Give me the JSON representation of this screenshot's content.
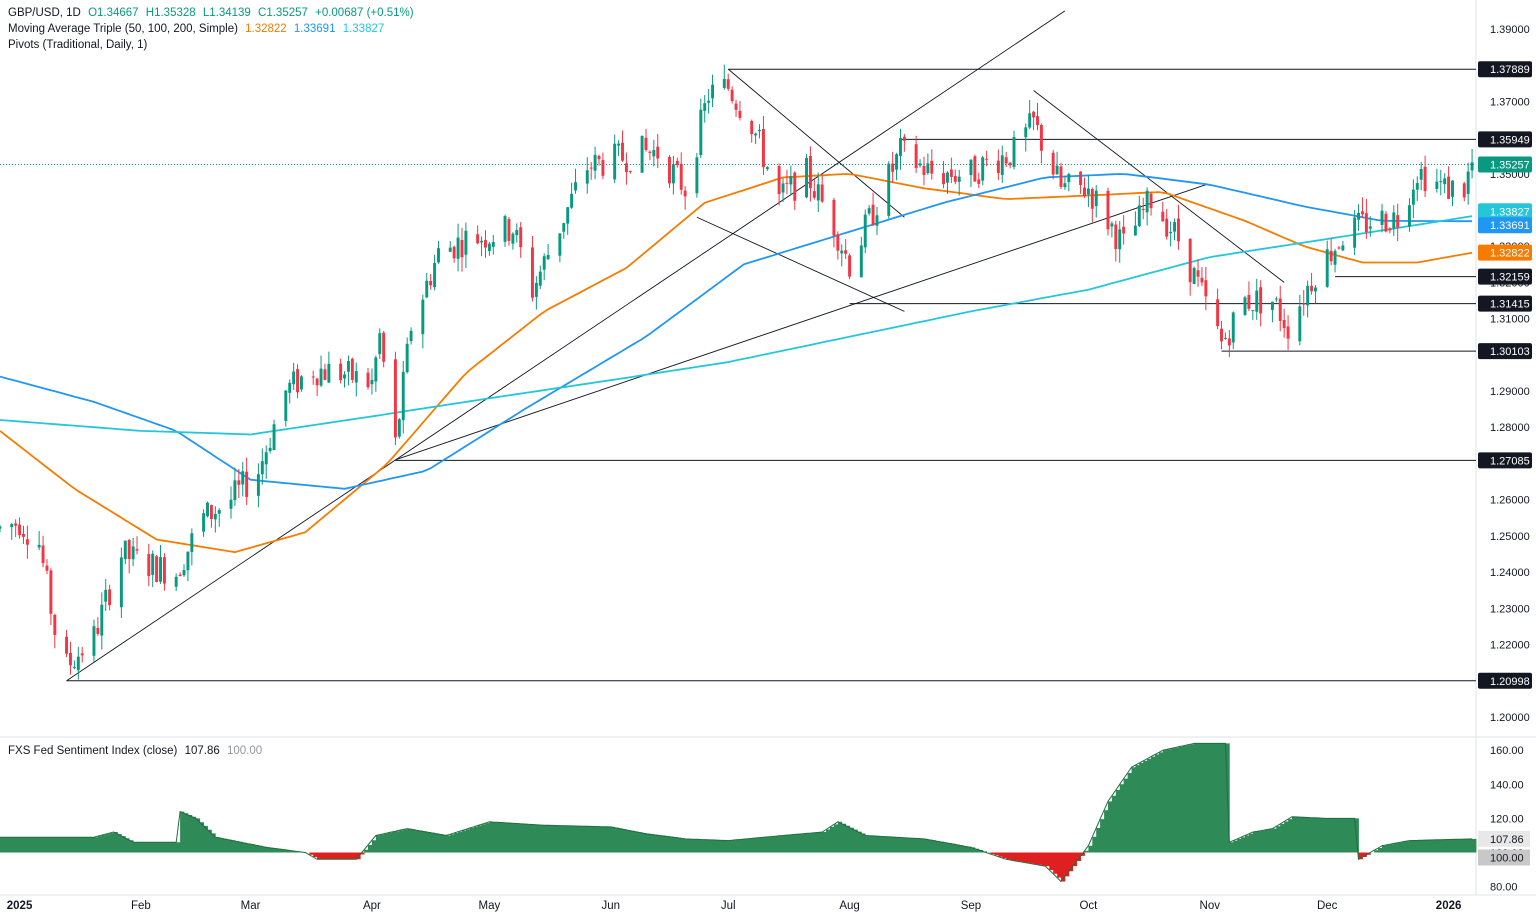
{
  "legend": {
    "symbol": "GBP/USD, 1D",
    "open": "O1.34667",
    "high": "H1.35328",
    "low": "L1.34139",
    "close": "C1.35257",
    "change": "+0.00687 (+0.51%)",
    "ma_title": "Moving Average Triple (50, 100, 200, Simple)",
    "ma_values": [
      "1.32822",
      "1.33691",
      "1.33827"
    ],
    "pivots_title": "Pivots (Traditional, Daily, 1)",
    "osc_title": "FXS Fed Sentiment Index (close)",
    "osc_value": "107.86",
    "osc_base": "100.00"
  },
  "colors": {
    "up": "#089981",
    "down": "#f23645",
    "ma50": "#f57c00",
    "ma100": "#2196f3",
    "ma200": "#26c6da",
    "osc_pos": "#2e8b57",
    "osc_neg": "#e02020"
  },
  "chart_data": {
    "type": "candlestick",
    "price_axis": {
      "ticks": [
        "1.39000",
        "1.37000",
        "1.35000",
        "1.34000",
        "1.33000",
        "1.32000",
        "1.31000",
        "1.29000",
        "1.28000",
        "1.26000",
        "1.25000",
        "1.24000",
        "1.23000",
        "1.22000",
        "1.20000"
      ],
      "ylim": [
        1.195,
        1.398
      ]
    },
    "time_axis": {
      "labels": [
        "2025",
        "Feb",
        "Mar",
        "Apr",
        "May",
        "Jun",
        "Jul",
        "Aug",
        "Sep",
        "Oct",
        "Nov",
        "Dec",
        "2026"
      ],
      "dates": [
        "2025-01-01",
        "2025-02-01",
        "2025-03-01",
        "2025-04-01",
        "2025-05-01",
        "2025-06-01",
        "2025-07-01",
        "2025-08-01",
        "2025-09-01",
        "2025-10-01",
        "2025-11-01",
        "2025-12-01",
        "2026-01-01"
      ],
      "range": [
        "2024-12-27",
        "2026-01-08"
      ]
    },
    "level_labels": [
      {
        "value": 1.37889,
        "label": "1.37889",
        "start": "2025-07-01"
      },
      {
        "value": 1.35949,
        "label": "1.35949",
        "start": "2025-08-14"
      },
      {
        "value": 1.35257,
        "label": "1.35257",
        "kind": "last"
      },
      {
        "value": 1.33827,
        "label": "1.33827",
        "kind": "ma200"
      },
      {
        "value": 1.33691,
        "label": "1.33691",
        "kind": "ma100"
      },
      {
        "value": 1.32822,
        "label": "1.32822",
        "kind": "ma50"
      },
      {
        "value": 1.32159,
        "label": "1.32159",
        "start": "2025-12-03"
      },
      {
        "value": 1.31415,
        "label": "1.31415",
        "start": "2025-08-01"
      },
      {
        "value": 1.30103,
        "label": "1.30103",
        "start": "2025-11-04"
      },
      {
        "value": 1.27085,
        "label": "1.27085",
        "start": "2025-04-07"
      },
      {
        "value": 1.20998,
        "label": "1.20998",
        "start": "2025-01-13"
      }
    ],
    "trendlines": [
      {
        "from": [
          "2025-01-13",
          1.21
        ],
        "to": [
          "2025-09-25",
          1.395
        ]
      },
      {
        "from": [
          "2025-04-07",
          1.271
        ],
        "to": [
          "2025-10-31",
          1.347
        ]
      },
      {
        "from": [
          "2025-07-01",
          1.3789
        ],
        "to": [
          "2025-08-15",
          1.338
        ]
      },
      {
        "from": [
          "2025-06-23",
          1.338
        ],
        "to": [
          "2025-08-15",
          1.312
        ]
      },
      {
        "from": [
          "2025-09-17",
          1.373
        ],
        "to": [
          "2025-11-20",
          1.32
        ]
      }
    ],
    "price_keypoints": [
      [
        "2024-12-27",
        1.252
      ],
      [
        "2025-01-01",
        1.254
      ],
      [
        "2025-01-06",
        1.248
      ],
      [
        "2025-01-10",
        1.224
      ],
      [
        "2025-01-13",
        1.214
      ],
      [
        "2025-01-20",
        1.222
      ],
      [
        "2025-01-27",
        1.245
      ],
      [
        "2025-02-03",
        1.242
      ],
      [
        "2025-02-10",
        1.24
      ],
      [
        "2025-02-17",
        1.255
      ],
      [
        "2025-02-24",
        1.26
      ],
      [
        "2025-03-03",
        1.268
      ],
      [
        "2025-03-10",
        1.29
      ],
      [
        "2025-03-17",
        1.296
      ],
      [
        "2025-03-24",
        1.295
      ],
      [
        "2025-04-01",
        1.292
      ],
      [
        "2025-04-03",
        1.305
      ],
      [
        "2025-04-07",
        1.275
      ],
      [
        "2025-04-11",
        1.308
      ],
      [
        "2025-04-18",
        1.328
      ],
      [
        "2025-04-25",
        1.332
      ],
      [
        "2025-05-01",
        1.333
      ],
      [
        "2025-05-07",
        1.335
      ],
      [
        "2025-05-12",
        1.318
      ],
      [
        "2025-05-20",
        1.338
      ],
      [
        "2025-05-26",
        1.352
      ],
      [
        "2025-06-02",
        1.354
      ],
      [
        "2025-06-09",
        1.356
      ],
      [
        "2025-06-13",
        1.356
      ],
      [
        "2025-06-20",
        1.346
      ],
      [
        "2025-06-26",
        1.372
      ],
      [
        "2025-07-01",
        1.374
      ],
      [
        "2025-07-07",
        1.364
      ],
      [
        "2025-07-14",
        1.343
      ],
      [
        "2025-07-21",
        1.35
      ],
      [
        "2025-07-28",
        1.336
      ],
      [
        "2025-08-01",
        1.325
      ],
      [
        "2025-08-08",
        1.342
      ],
      [
        "2025-08-14",
        1.356
      ],
      [
        "2025-08-22",
        1.35
      ],
      [
        "2025-09-01",
        1.35
      ],
      [
        "2025-09-05",
        1.353
      ],
      [
        "2025-09-12",
        1.356
      ],
      [
        "2025-09-17",
        1.364
      ],
      [
        "2025-09-24",
        1.346
      ],
      [
        "2025-10-01",
        1.346
      ],
      [
        "2025-10-10",
        1.33
      ],
      [
        "2025-10-17",
        1.343
      ],
      [
        "2025-10-24",
        1.332
      ],
      [
        "2025-10-31",
        1.314
      ],
      [
        "2025-11-04",
        1.303
      ],
      [
        "2025-11-10",
        1.315
      ],
      [
        "2025-11-17",
        1.315
      ],
      [
        "2025-11-21",
        1.308
      ],
      [
        "2025-11-28",
        1.323
      ],
      [
        "2025-12-05",
        1.333
      ],
      [
        "2025-12-12",
        1.337
      ],
      [
        "2025-12-19",
        1.338
      ],
      [
        "2025-12-24",
        1.351
      ],
      [
        "2025-12-31",
        1.346
      ],
      [
        "2026-01-05",
        1.346
      ],
      [
        "2026-01-07",
        1.3525
      ]
    ],
    "ma50_keypoints": [
      [
        "2024-12-27",
        1.279
      ],
      [
        "2025-01-15",
        1.263
      ],
      [
        "2025-02-05",
        1.249
      ],
      [
        "2025-02-25",
        1.2455
      ],
      [
        "2025-03-15",
        1.251
      ],
      [
        "2025-04-05",
        1.27
      ],
      [
        "2025-04-25",
        1.295
      ],
      [
        "2025-05-15",
        1.312
      ],
      [
        "2025-06-05",
        1.324
      ],
      [
        "2025-06-25",
        1.342
      ],
      [
        "2025-07-15",
        1.349
      ],
      [
        "2025-08-01",
        1.35
      ],
      [
        "2025-08-20",
        1.346
      ],
      [
        "2025-09-10",
        1.343
      ],
      [
        "2025-10-01",
        1.344
      ],
      [
        "2025-10-20",
        1.345
      ],
      [
        "2025-11-10",
        1.337
      ],
      [
        "2025-11-25",
        1.33
      ],
      [
        "2025-12-10",
        1.3255
      ],
      [
        "2025-12-24",
        1.3255
      ],
      [
        "2026-01-07",
        1.3282
      ]
    ],
    "ma100_keypoints": [
      [
        "2024-12-27",
        1.294
      ],
      [
        "2025-01-20",
        1.287
      ],
      [
        "2025-02-10",
        1.279
      ],
      [
        "2025-03-01",
        1.2655
      ],
      [
        "2025-03-25",
        1.263
      ],
      [
        "2025-04-15",
        1.268
      ],
      [
        "2025-05-10",
        1.285
      ],
      [
        "2025-06-10",
        1.305
      ],
      [
        "2025-07-05",
        1.325
      ],
      [
        "2025-08-01",
        1.334
      ],
      [
        "2025-08-25",
        1.342
      ],
      [
        "2025-09-20",
        1.349
      ],
      [
        "2025-10-10",
        1.35
      ],
      [
        "2025-11-01",
        1.347
      ],
      [
        "2025-11-25",
        1.341
      ],
      [
        "2025-12-15",
        1.337
      ],
      [
        "2026-01-07",
        1.3369
      ]
    ],
    "ma200_keypoints": [
      [
        "2024-12-27",
        1.282
      ],
      [
        "2025-02-01",
        1.279
      ],
      [
        "2025-03-01",
        1.278
      ],
      [
        "2025-04-01",
        1.283
      ],
      [
        "2025-05-01",
        1.288
      ],
      [
        "2025-06-01",
        1.293
      ],
      [
        "2025-07-01",
        1.298
      ],
      [
        "2025-08-01",
        1.305
      ],
      [
        "2025-09-01",
        1.312
      ],
      [
        "2025-10-01",
        1.318
      ],
      [
        "2025-11-01",
        1.327
      ],
      [
        "2025-12-01",
        1.332
      ],
      [
        "2026-01-07",
        1.3383
      ]
    ],
    "oscillator": {
      "title": "FXS Fed Sentiment Index (close)",
      "baseline": 100,
      "ticks": [
        "160.00",
        "140.00",
        "120.00",
        "100.00",
        "80.00"
      ],
      "ylim": [
        78,
        166
      ],
      "keypoints": [
        [
          "2024-12-27",
          109
        ],
        [
          "2025-01-20",
          109
        ],
        [
          "2025-01-25",
          112
        ],
        [
          "2025-01-30",
          106
        ],
        [
          "2025-02-10",
          106
        ],
        [
          "2025-02-11",
          124
        ],
        [
          "2025-02-15",
          120
        ],
        [
          "2025-02-20",
          109
        ],
        [
          "2025-03-05",
          103
        ],
        [
          "2025-03-15",
          100
        ],
        [
          "2025-03-18",
          96
        ],
        [
          "2025-03-28",
          96
        ],
        [
          "2025-04-02",
          110
        ],
        [
          "2025-04-10",
          114
        ],
        [
          "2025-04-20",
          110
        ],
        [
          "2025-05-01",
          118
        ],
        [
          "2025-05-15",
          116
        ],
        [
          "2025-06-01",
          115
        ],
        [
          "2025-06-10",
          111
        ],
        [
          "2025-06-20",
          108
        ],
        [
          "2025-07-01",
          107
        ],
        [
          "2025-07-15",
          110
        ],
        [
          "2025-07-25",
          112
        ],
        [
          "2025-07-29",
          118
        ],
        [
          "2025-08-05",
          110
        ],
        [
          "2025-08-20",
          108
        ],
        [
          "2025-09-01",
          103
        ],
        [
          "2025-09-10",
          96
        ],
        [
          "2025-09-20",
          92
        ],
        [
          "2025-09-24",
          83
        ],
        [
          "2025-09-27",
          92
        ],
        [
          "2025-10-01",
          104
        ],
        [
          "2025-10-06",
          130
        ],
        [
          "2025-10-12",
          150
        ],
        [
          "2025-10-20",
          160
        ],
        [
          "2025-10-28",
          164
        ],
        [
          "2025-11-05",
          164
        ],
        [
          "2025-11-06",
          106
        ],
        [
          "2025-11-12",
          112
        ],
        [
          "2025-11-17",
          114
        ],
        [
          "2025-11-22",
          121
        ],
        [
          "2025-12-01",
          120
        ],
        [
          "2025-12-08",
          120
        ],
        [
          "2025-12-09",
          96
        ],
        [
          "2025-12-15",
          104
        ],
        [
          "2025-12-22",
          107
        ],
        [
          "2026-01-07",
          108
        ]
      ]
    }
  }
}
